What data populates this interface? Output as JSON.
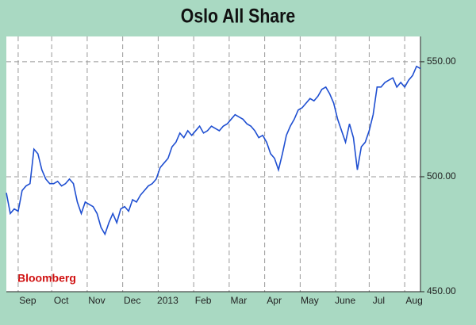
{
  "chart_data": {
    "type": "line",
    "title": "Oslo All Share",
    "annotation": "Bloomberg",
    "series": [
      {
        "color": "#1f4fd1",
        "values": [
          493,
          484,
          486,
          485,
          494,
          496,
          497,
          512,
          510,
          503,
          499,
          497,
          497,
          498,
          496,
          497,
          499,
          497,
          489,
          484,
          489,
          488,
          487,
          484,
          478,
          475,
          480,
          484,
          480,
          486,
          487,
          485,
          490,
          489,
          492,
          494,
          496,
          497,
          499,
          504,
          506,
          508,
          513,
          515,
          519,
          517,
          520,
          518,
          520,
          522,
          519,
          520,
          522,
          521,
          520,
          522,
          523,
          525,
          527,
          526,
          525,
          523,
          522,
          520,
          517,
          518,
          515,
          510,
          508,
          503,
          510,
          518,
          522,
          525,
          529,
          530,
          532,
          534,
          533,
          535,
          538,
          539,
          536,
          532,
          525,
          520,
          515,
          523,
          517,
          503,
          513,
          515,
          520,
          527,
          539,
          539,
          541,
          542,
          543,
          539,
          541,
          539,
          542,
          544,
          548,
          547
        ]
      }
    ],
    "xlim": [
      0,
      105
    ],
    "xticks": [
      {
        "value": 3,
        "label": "Sep"
      },
      {
        "value": 11.5,
        "label": "Oct"
      },
      {
        "value": 20.5,
        "label": "Nov"
      },
      {
        "value": 29.5,
        "label": "Dec"
      },
      {
        "value": 38.5,
        "label": "2013"
      },
      {
        "value": 47.5,
        "label": "Feb"
      },
      {
        "value": 56.5,
        "label": "Mar"
      },
      {
        "value": 65.5,
        "label": "Apr"
      },
      {
        "value": 74.5,
        "label": "May"
      },
      {
        "value": 83.5,
        "label": "June"
      },
      {
        "value": 92,
        "label": "Jul"
      },
      {
        "value": 101,
        "label": "Aug"
      }
    ],
    "ylim": [
      450,
      561
    ],
    "yticks": [
      {
        "value": 450,
        "label": "450.00"
      },
      {
        "value": 500,
        "label": "500.00"
      },
      {
        "value": 550,
        "label": "550.00"
      }
    ],
    "grid": true
  }
}
